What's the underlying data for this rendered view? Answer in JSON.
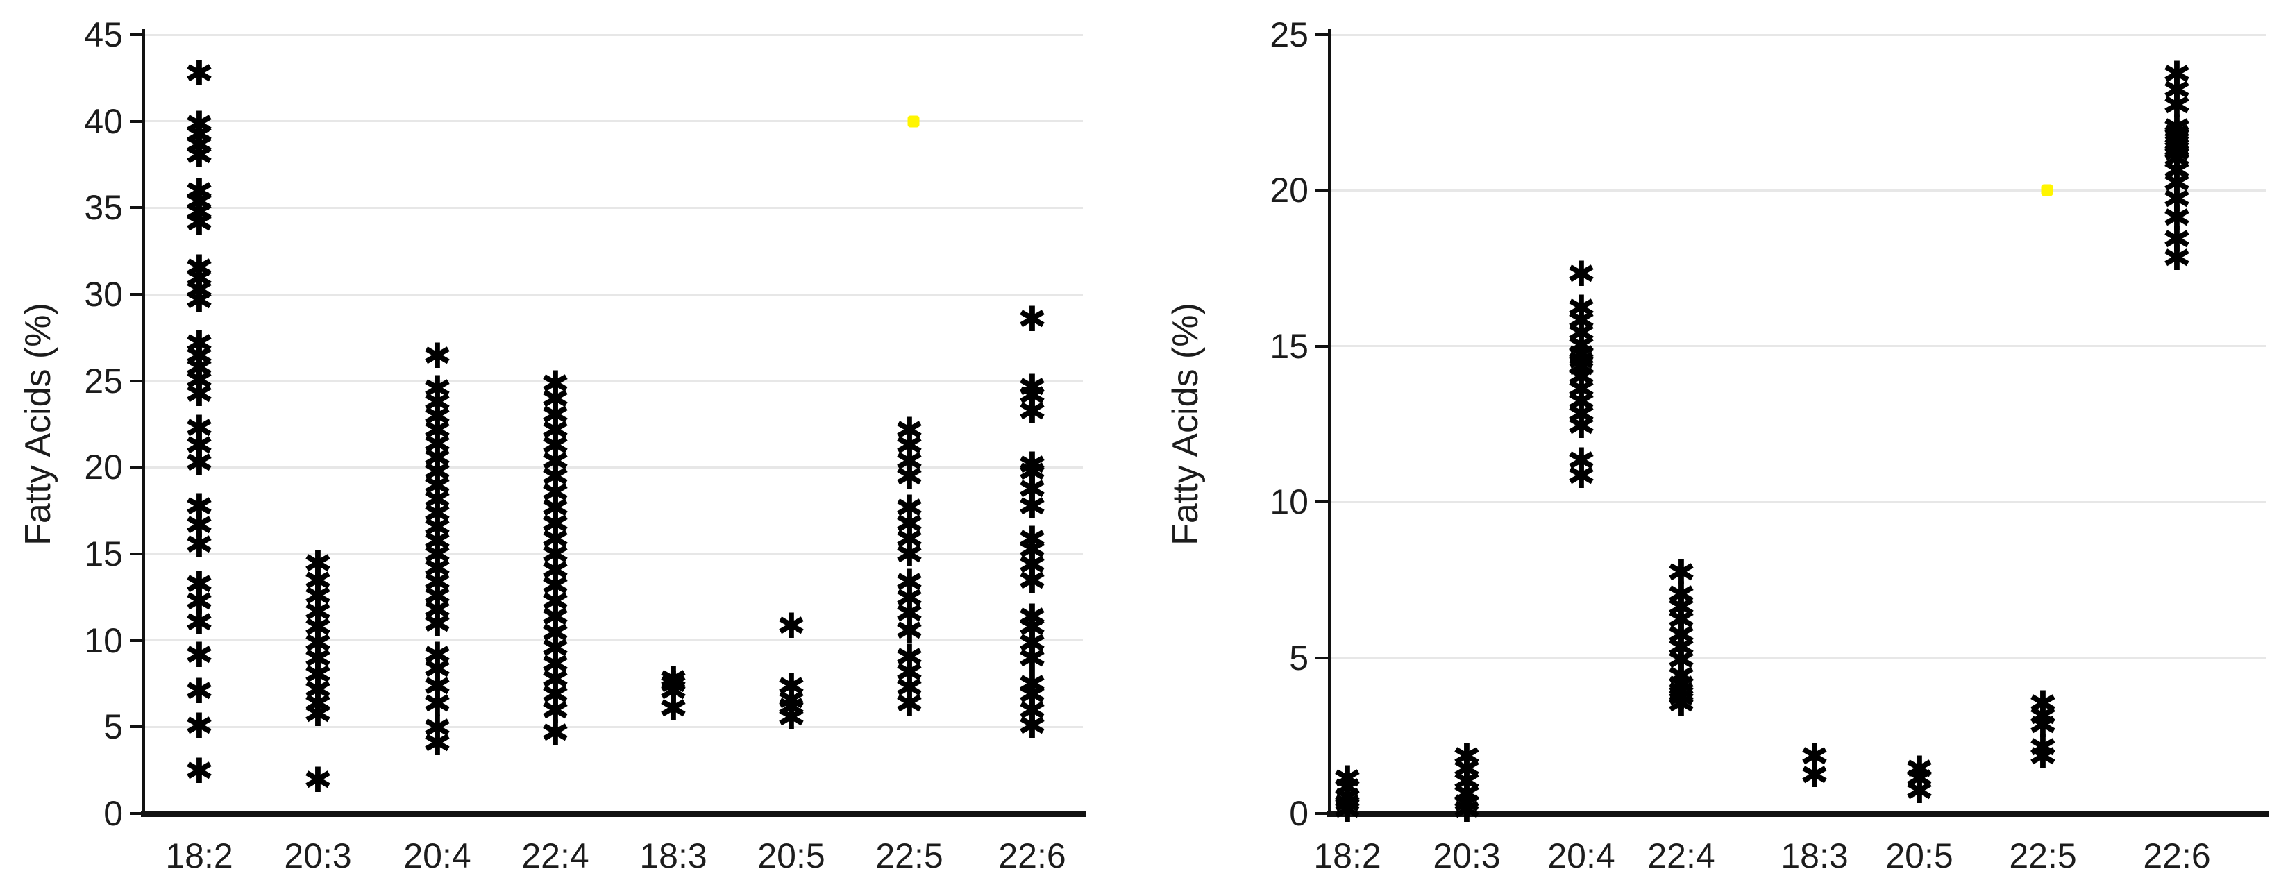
{
  "figure": {
    "background": "#ffffff",
    "axis_color": "#121212",
    "grid_color": "#e7e7e7",
    "marker_glyph": "✱",
    "marker_color": "#000000",
    "highlight_color": "#fff500"
  },
  "chart_data": [
    {
      "type": "scatter",
      "panel": "left",
      "title": "",
      "xlabel": "",
      "ylabel": "Fatty Acids (%)",
      "ylim": [
        0,
        45
      ],
      "yticks": [
        0,
        5,
        10,
        15,
        20,
        25,
        30,
        35,
        40,
        45
      ],
      "grid": true,
      "legend": "none",
      "categories": [
        "18:2",
        "20:3",
        "20:4",
        "22:4",
        "18:3",
        "20:5",
        "22:5",
        "22:6"
      ],
      "series": [
        {
          "name": "samples",
          "marker": "asterisk",
          "color": "#000000",
          "points": {
            "18:2": [
              42.7,
              39.8,
              39.2,
              38.6,
              38.0,
              35.9,
              35.3,
              34.7,
              34.1,
              31.5,
              30.9,
              30.2,
              29.6,
              27.1,
              26.4,
              25.7,
              25.0,
              24.2,
              22.2,
              21.2,
              20.2,
              17.7,
              16.6,
              15.5,
              13.2,
              12.2,
              11.0,
              9.1,
              7.0,
              5.0,
              2.4
            ],
            "20:3": [
              14.4,
              13.4,
              12.5,
              11.6,
              10.7,
              9.8,
              8.9,
              8.0,
              7.1,
              6.3,
              5.7,
              1.9
            ],
            "20:4": [
              26.4,
              24.5,
              23.7,
              22.9,
              22.1,
              21.3,
              20.5,
              19.7,
              18.9,
              18.1,
              17.3,
              16.5,
              15.7,
              14.9,
              14.1,
              13.3,
              12.5,
              11.7,
              10.9,
              9.1,
              8.3,
              7.3,
              6.3,
              4.9,
              4.0
            ],
            "22:4": [
              24.8,
              23.9,
              23.0,
              22.1,
              21.2,
              20.3,
              19.4,
              18.5,
              17.6,
              16.7,
              15.8,
              14.9,
              14.0,
              13.1,
              12.2,
              11.3,
              10.4,
              9.5,
              8.6,
              7.7,
              6.8,
              5.9,
              4.6
            ],
            "18:3": [
              7.7,
              7.4,
              7.0,
              6.0
            ],
            "20:5": [
              10.8,
              7.3,
              6.5,
              6.1,
              5.5
            ],
            "22:5": [
              22.1,
              21.2,
              20.3,
              19.4,
              17.6,
              16.7,
              15.8,
              14.9,
              13.3,
              12.4,
              11.5,
              10.5,
              9.0,
              8.1,
              7.2,
              6.3
            ],
            "22:6": [
              28.5,
              24.6,
              24.1,
              23.2,
              20.1,
              19.7,
              18.7,
              17.7,
              15.8,
              15.2,
              14.3,
              13.4,
              11.3,
              10.7,
              9.8,
              8.9,
              7.4,
              6.8,
              5.9,
              5.0
            ]
          }
        },
        {
          "name": "highlight-point",
          "marker": "square-dot",
          "color": "#fff500",
          "points": {
            "22:5": [
              40
            ]
          }
        }
      ]
    },
    {
      "type": "scatter",
      "panel": "right",
      "title": "",
      "xlabel": "",
      "ylabel": "Fatty Acids (%)",
      "ylim": [
        0,
        25
      ],
      "yticks": [
        0,
        5,
        10,
        15,
        20,
        25
      ],
      "grid": true,
      "legend": "none",
      "categories": [
        "18:2",
        "20:3",
        "20:4",
        "22:4",
        "18:3",
        "20:5",
        "22:5",
        "22:6"
      ],
      "series": [
        {
          "name": "samples",
          "marker": "asterisk",
          "color": "#000000",
          "points": {
            "18:2": [
              1.1,
              0.8,
              0.5,
              0.3,
              0.1
            ],
            "20:3": [
              1.8,
              1.4,
              1.0,
              0.6,
              0.3,
              0.1
            ],
            "20:4": [
              17.3,
              16.2,
              15.8,
              15.4,
              15.0,
              14.7,
              14.5,
              14.3,
              14.0,
              13.6,
              13.2,
              12.8,
              12.4,
              11.3,
              10.8
            ],
            "22:4": [
              7.7,
              7.0,
              6.6,
              6.2,
              5.7,
              5.3,
              4.9,
              4.4,
              4.1,
              3.9,
              3.7,
              3.5
            ],
            "18:3": [
              1.8,
              1.2
            ],
            "20:5": [
              1.4,
              1.1,
              0.7
            ],
            "22:5": [
              3.5,
              3.1,
              2.8,
              2.1,
              1.8
            ],
            "22:6": [
              23.7,
              23.2,
              22.7,
              22.0,
              21.8,
              21.6,
              21.4,
              21.2,
              21.0,
              20.6,
              20.2,
              19.7,
              19.1,
              18.4,
              17.8
            ]
          }
        },
        {
          "name": "highlight-point",
          "marker": "square-dot",
          "color": "#fff500",
          "points": {
            "22:5": [
              20
            ]
          }
        }
      ]
    }
  ]
}
